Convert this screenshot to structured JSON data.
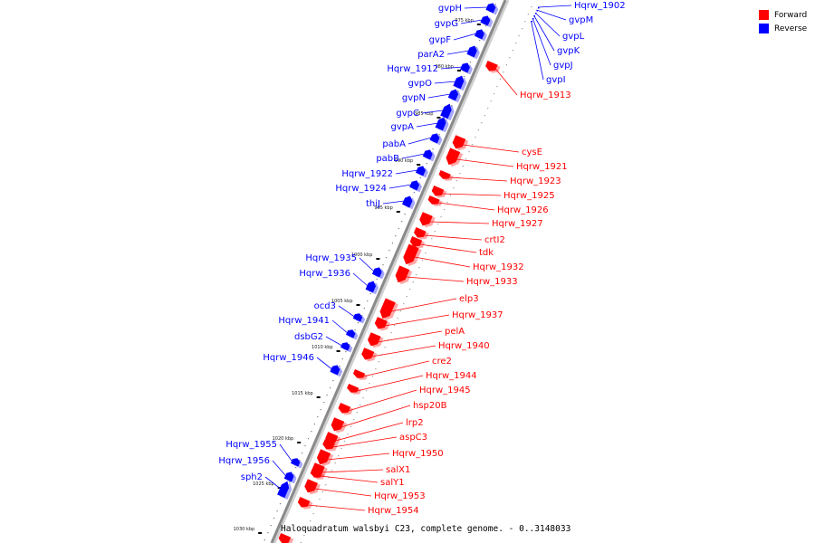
{
  "legend": [
    {
      "label": "Forward",
      "color": "#ff0000"
    },
    {
      "label": "Reverse",
      "color": "#0000ff"
    }
  ],
  "caption": "Haloquadratum walsbyi C23, complete genome. - 0..3148033",
  "colors": {
    "forward": "#ff0000",
    "reverse": "#0000ff",
    "backbone": "#8a8a8a"
  },
  "ticks": [
    "975 kbp",
    "980 kbp",
    "985 kbp",
    "990 kbp",
    "995 kbp",
    "1000 kbp",
    "1005 kbp",
    "1010 kbp",
    "1015 kbp",
    "1020 kbp",
    "1025 kbp",
    "1030 kbp"
  ],
  "reverse_genes": [
    "gvpH",
    "gvpG",
    "gvpF",
    "parA2",
    "Hqrw_1912",
    "gvpO",
    "gvpN",
    "gvpC",
    "gvpA",
    "pabA",
    "pabB",
    "Hqrw_1922",
    "Hqrw_1924",
    "thiJ",
    "Hqrw_1935",
    "Hqrw_1936",
    "ocd3",
    "Hqrw_1941",
    "dsbG2",
    "Hqrw_1946",
    "Hqrw_1955",
    "Hqrw_1956",
    "sph2"
  ],
  "reverse_top_genes": [
    "Hqrw_1902",
    "gvpM",
    "gvpL",
    "gvpK",
    "gvpJ",
    "gvpI"
  ],
  "forward_genes": [
    "Hqrw_1913",
    "cysE",
    "Hqrw_1921",
    "Hqrw_1923",
    "Hqrw_1925",
    "Hqrw_1926",
    "Hqrw_1927",
    "crtI2",
    "tdk",
    "Hqrw_1932",
    "Hqrw_1933",
    "elp3",
    "Hqrw_1937",
    "pelA",
    "Hqrw_1940",
    "cre2",
    "Hqrw_1944",
    "Hqrw_1945",
    "hsp20B",
    "lrp2",
    "aspC3",
    "Hqrw_1950",
    "salX1",
    "salY1",
    "Hqrw_1953",
    "Hqrw_1954"
  ]
}
